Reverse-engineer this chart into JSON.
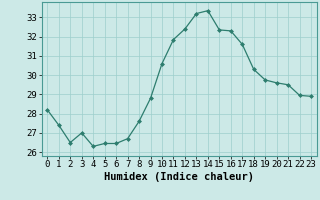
{
  "x": [
    0,
    1,
    2,
    3,
    4,
    5,
    6,
    7,
    8,
    9,
    10,
    11,
    12,
    13,
    14,
    15,
    16,
    17,
    18,
    19,
    20,
    21,
    22,
    23
  ],
  "y": [
    28.2,
    27.4,
    26.5,
    27.0,
    26.3,
    26.45,
    26.45,
    26.7,
    27.6,
    28.8,
    30.6,
    31.85,
    32.4,
    33.2,
    33.35,
    32.35,
    32.3,
    31.6,
    30.3,
    29.75,
    29.6,
    29.5,
    28.95,
    28.9
  ],
  "line_color": "#2d7d6e",
  "marker_color": "#2d7d6e",
  "bg_color": "#cce9e7",
  "grid_color": "#9ecfcc",
  "xlabel": "Humidex (Indice chaleur)",
  "xlim": [
    -0.5,
    23.5
  ],
  "ylim": [
    25.8,
    33.8
  ],
  "yticks": [
    26,
    27,
    28,
    29,
    30,
    31,
    32,
    33
  ],
  "xtick_labels": [
    "0",
    "1",
    "2",
    "3",
    "4",
    "5",
    "6",
    "7",
    "8",
    "9",
    "10",
    "11",
    "12",
    "13",
    "14",
    "15",
    "16",
    "17",
    "18",
    "19",
    "20",
    "21",
    "22",
    "23"
  ],
  "tick_fontsize": 6.5,
  "label_fontsize": 7.5
}
